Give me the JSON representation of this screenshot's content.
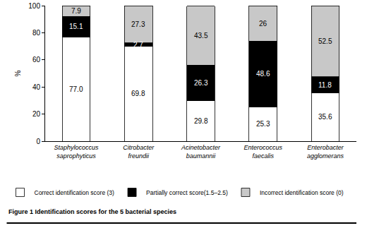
{
  "chart_data": {
    "type": "bar",
    "stacked": true,
    "data_labels": true,
    "grid": false,
    "legend": "bottom",
    "title": "Figure 1 Identification scores for the 5 bacterial species",
    "y_label": "%",
    "categories": [
      "Staphylococcus saprophyticus",
      "Citrobacter freundii",
      "Acinetobacter baumannii",
      "Enterococcus faecalis",
      "Enterobacter agglomerans"
    ],
    "ylim": [
      0,
      100
    ],
    "yticks": [
      0,
      20,
      40,
      60,
      80,
      100
    ],
    "series": [
      {
        "name": "Correct identification score (3)",
        "color": "#ffffff",
        "values": [
          77.0,
          69.8,
          29.8,
          25.3,
          35.6
        ],
        "value_labels": [
          "77.0",
          "69.8",
          "29.8",
          "25.3",
          "35.6"
        ]
      },
      {
        "name": "Partially correct score(1.5–2.5)",
        "color": "#000000",
        "values": [
          15.1,
          2.7,
          26.3,
          48.6,
          11.8
        ],
        "value_labels": [
          "15.1",
          "2.7",
          "26.3",
          "48.6",
          "11.8"
        ]
      },
      {
        "name": "Incorrect identification score (0)",
        "color": "#c8c8c8",
        "values": [
          7.9,
          27.3,
          43.5,
          26,
          52.5
        ],
        "value_labels": [
          "7.9",
          "27.3",
          "43.5",
          "26",
          "52.5"
        ]
      }
    ]
  }
}
